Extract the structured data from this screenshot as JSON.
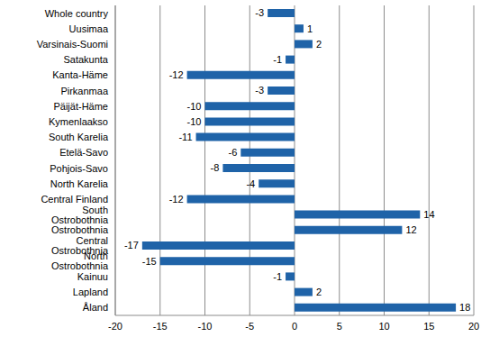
{
  "chart_data": {
    "type": "bar",
    "orientation": "horizontal",
    "categories": [
      "Whole country",
      "Uusimaa",
      "Varsinais-Suomi",
      "Satakunta",
      "Kanta-Häme",
      "Pirkanmaa",
      "Päijät-Häme",
      "Kymenlaakso",
      "South Karelia",
      "Etelä-Savo",
      "Pohjois-Savo",
      "North Karelia",
      "Central Finland",
      "South Ostrobothnia",
      "Ostrobothnia",
      "Central Ostrobothnia",
      "North Ostrobothnia",
      "Kainuu",
      "Lapland",
      "Åland"
    ],
    "values": [
      -3,
      1,
      2,
      -1,
      -12,
      -3,
      -10,
      -10,
      -11,
      -6,
      -8,
      -4,
      -12,
      14,
      12,
      -17,
      -15,
      -1,
      2,
      18
    ],
    "color": "#1f63a8",
    "xlim": [
      -20,
      20
    ],
    "xticks": [
      -20,
      -15,
      -10,
      -5,
      0,
      5,
      10,
      15,
      20
    ],
    "grid": true,
    "data_labels": true
  }
}
